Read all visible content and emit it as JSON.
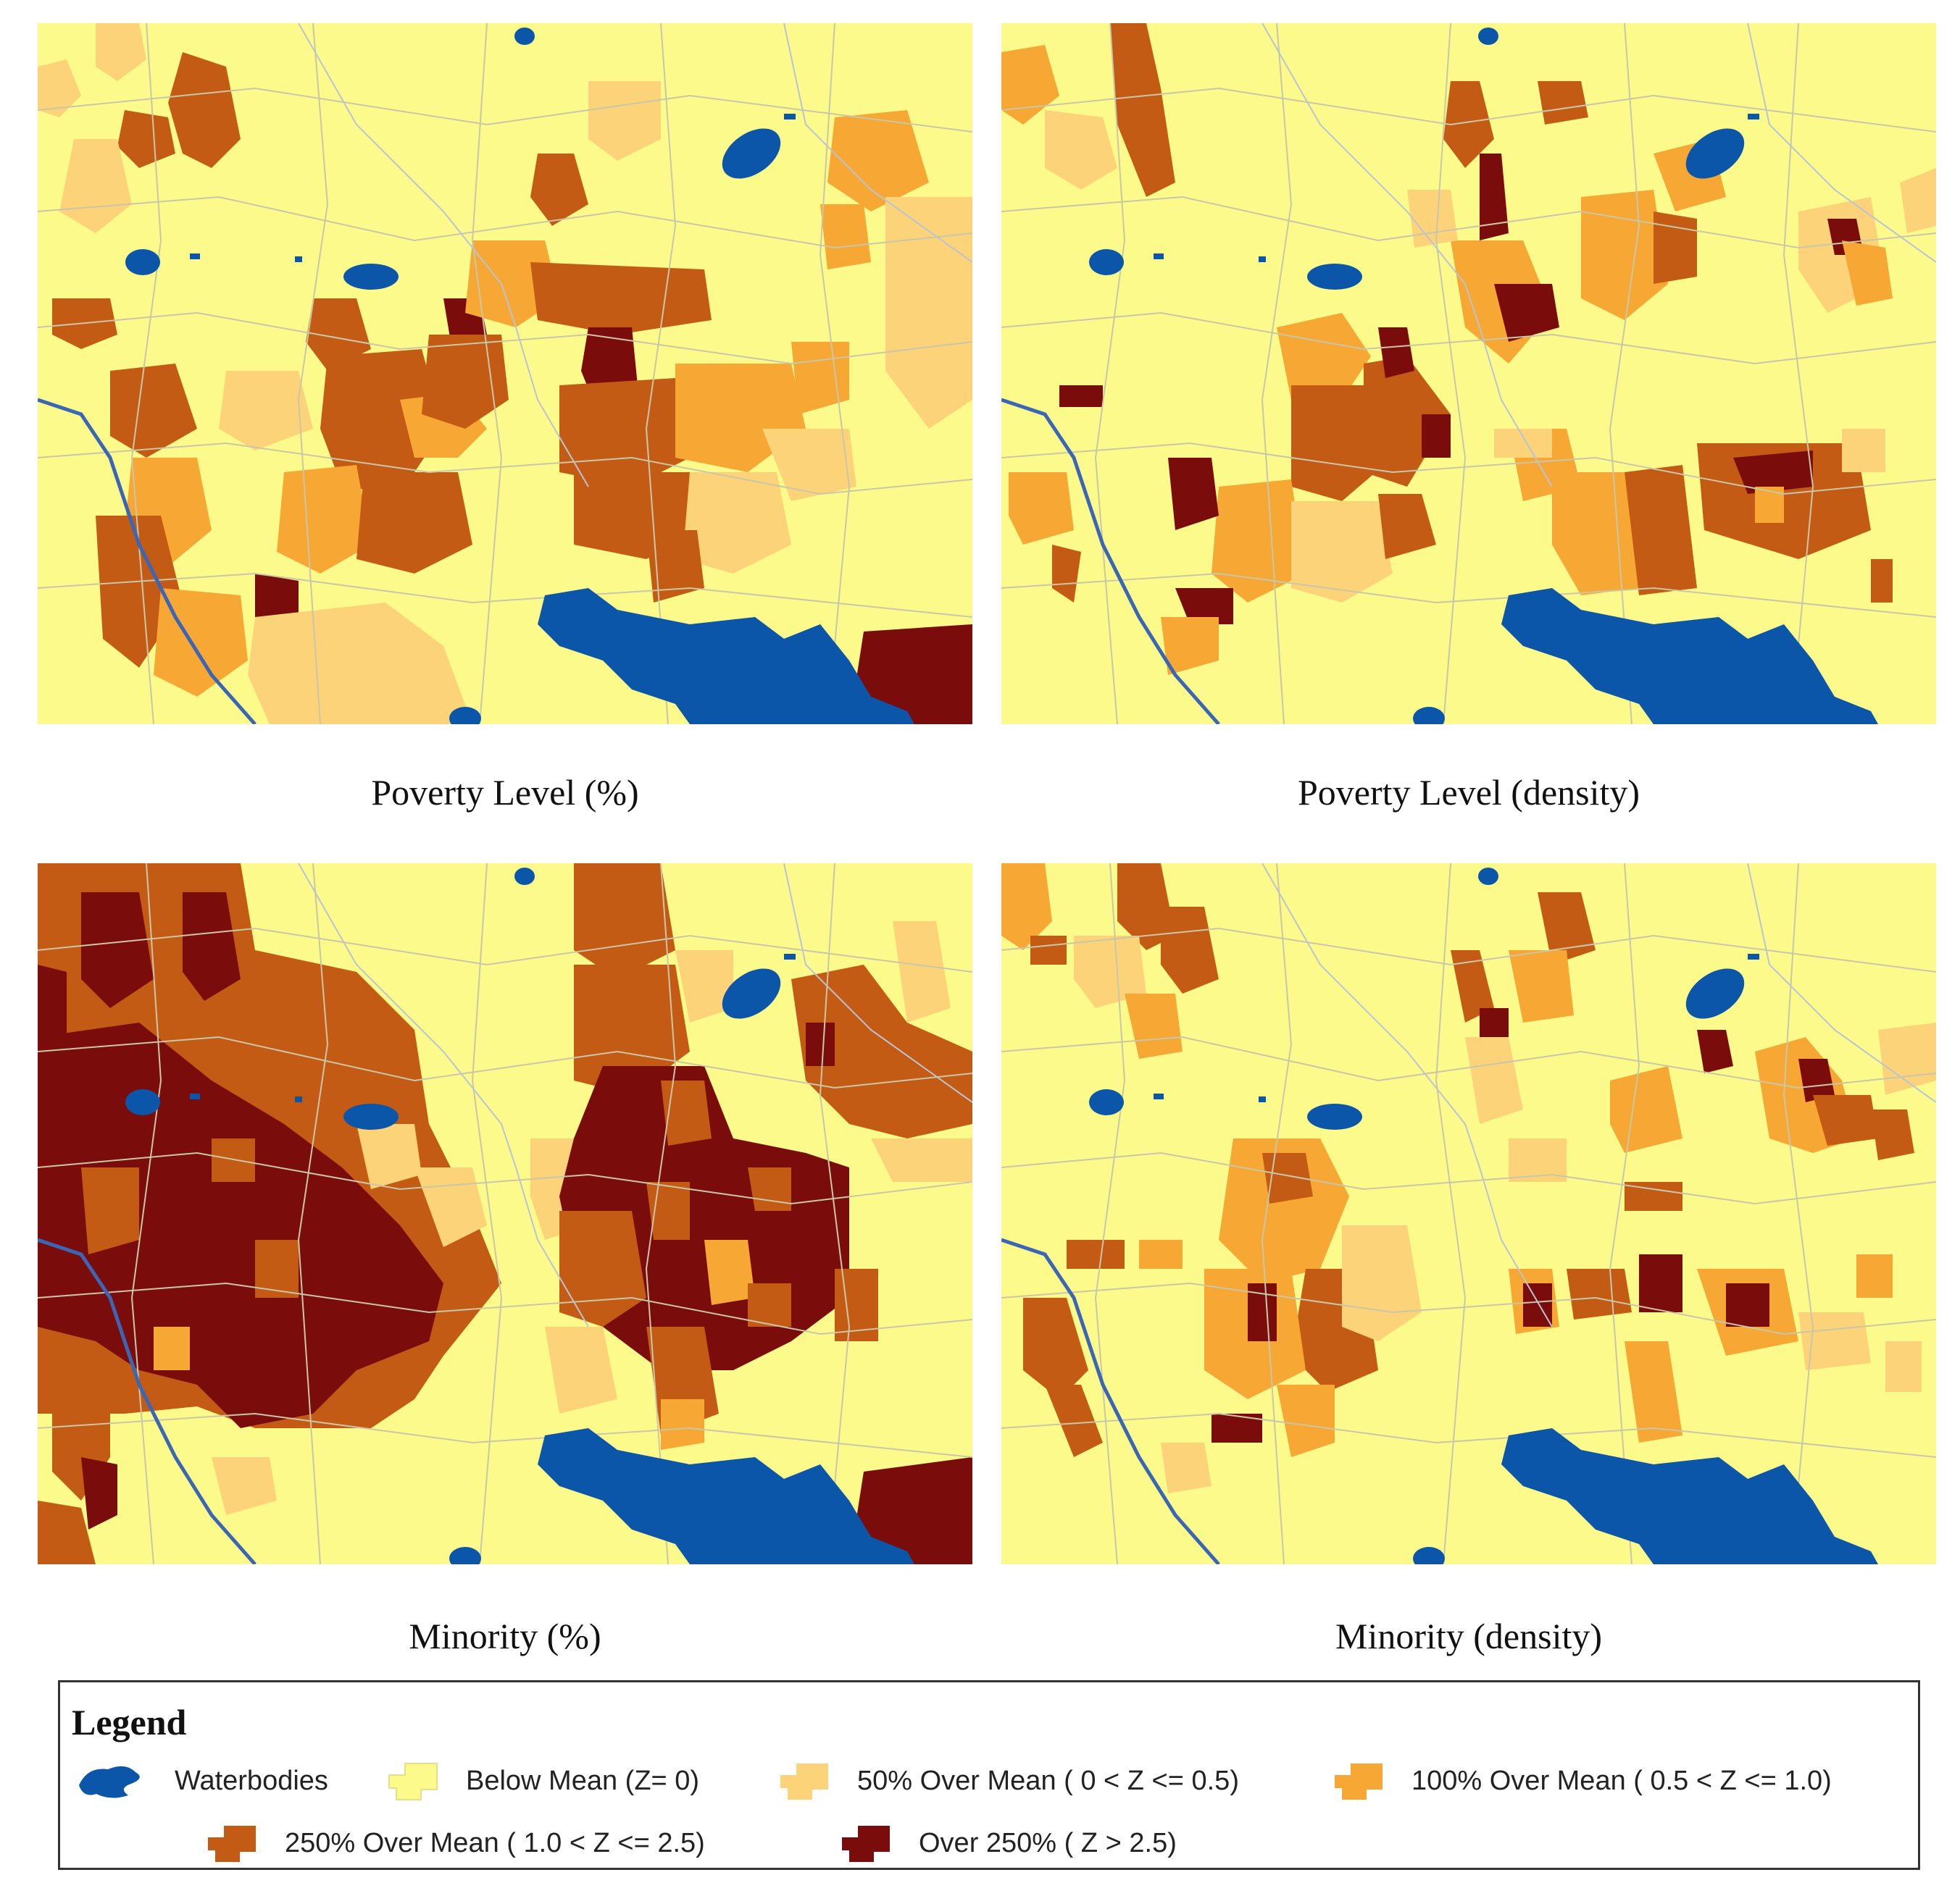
{
  "maps": [
    {
      "id": "tl",
      "caption": "Poverty Level (%)"
    },
    {
      "id": "tr",
      "caption": "Poverty Level (density)"
    },
    {
      "id": "bl",
      "caption": "Minority (%)"
    },
    {
      "id": "br",
      "caption": "Minority (density)"
    }
  ],
  "legend": {
    "title": "Legend",
    "items": [
      {
        "label": "Waterbodies",
        "color": "#0b56a8",
        "icon": "waterbody-swatch"
      },
      {
        "label": "Below Mean (Z= 0)",
        "color": "#fdfa8c",
        "icon": "below-mean-swatch"
      },
      {
        "label": "50% Over Mean ( 0 < Z <= 0.5)",
        "color": "#fdd37a",
        "icon": "50-pct-swatch"
      },
      {
        "label": "100% Over Mean ( 0.5 < Z <= 1.0)",
        "color": "#f7a733",
        "icon": "100-pct-swatch"
      },
      {
        "label": "250% Over Mean ( 1.0 < Z <= 2.5)",
        "color": "#c45b14",
        "icon": "250-pct-swatch"
      },
      {
        "label": "Over 250% ( Z > 2.5)",
        "color": "#7a0c0c",
        "icon": "over-250-swatch"
      }
    ]
  }
}
